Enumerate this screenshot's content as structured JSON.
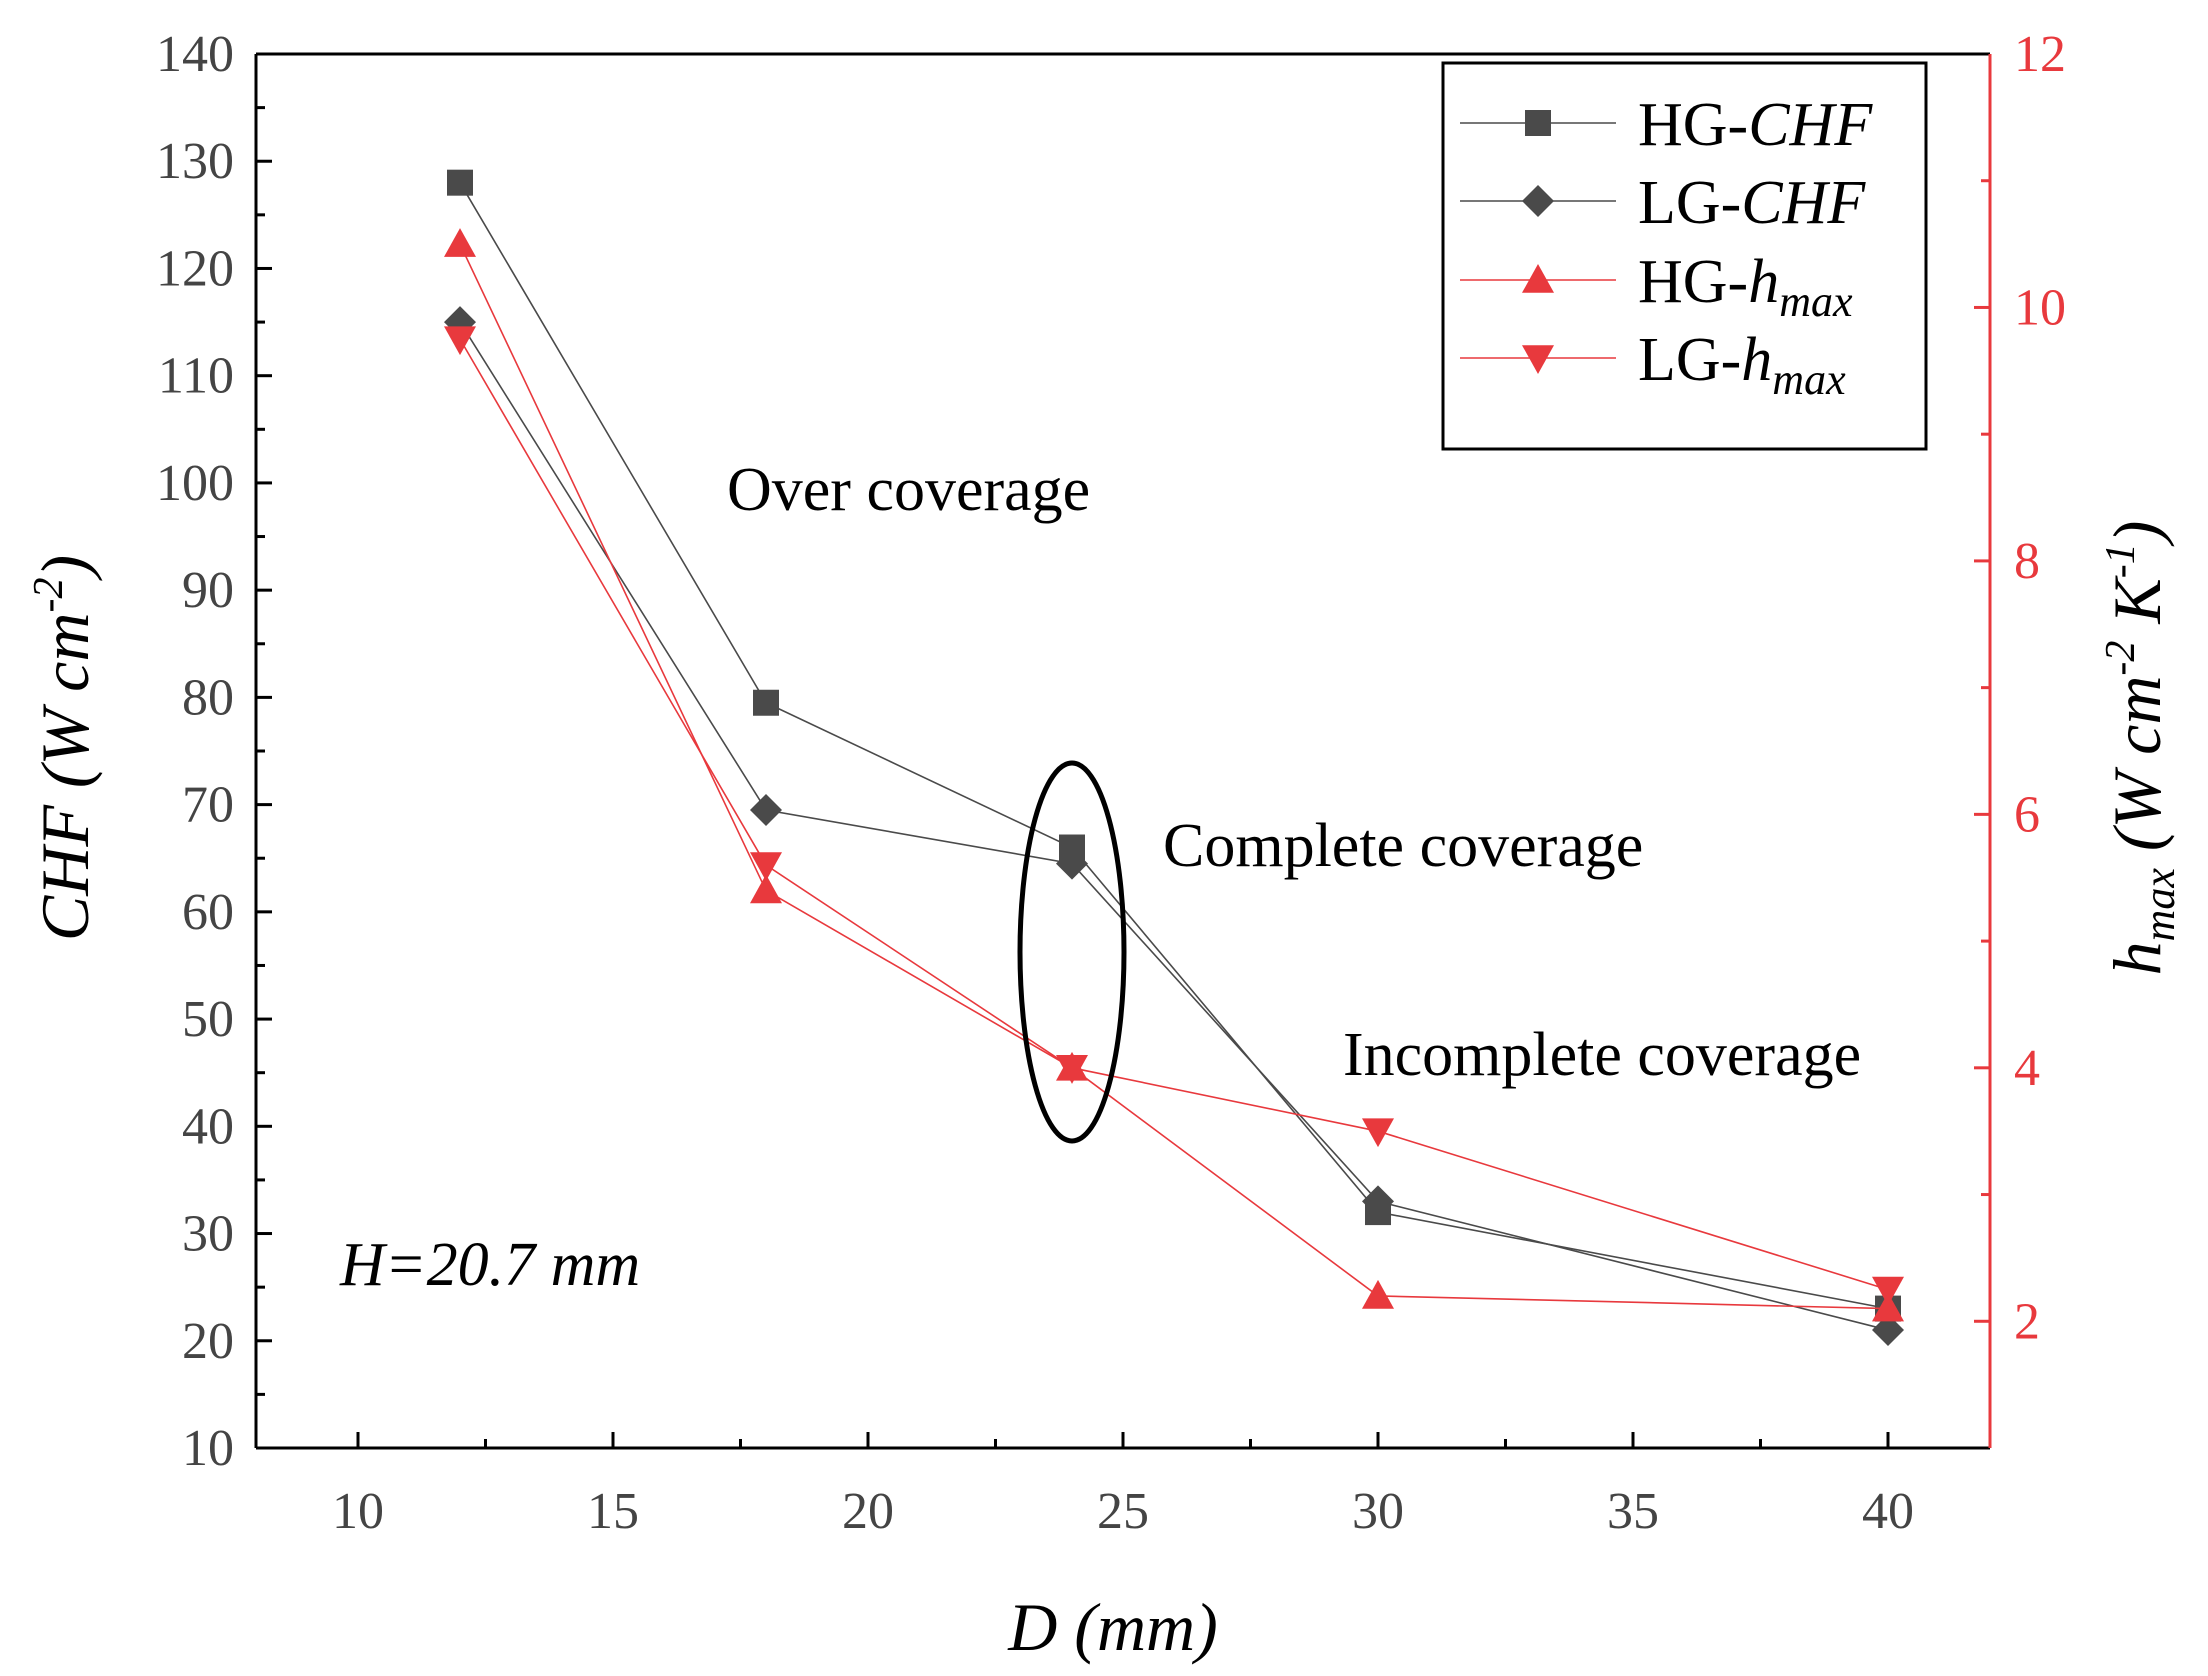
{
  "chart_data": {
    "type": "line",
    "x": [
      12,
      18,
      24,
      30,
      40
    ],
    "xlim": [
      8,
      42
    ],
    "xticks": [
      "10",
      "15",
      "20",
      "25",
      "30",
      "35",
      "40"
    ],
    "xlabel": {
      "main": "D",
      "rest": " (mm)"
    },
    "ylim": [
      10,
      140
    ],
    "yticks": [
      "10",
      "20",
      "30",
      "40",
      "50",
      "60",
      "70",
      "80",
      "90",
      "100",
      "110",
      "120",
      "130",
      "140"
    ],
    "ylabel": {
      "main": "CHF",
      "rest": " (W cm",
      "sup": "-2",
      "close": ")"
    },
    "y2lim": [
      1,
      12
    ],
    "y2ticks": [
      "2",
      "4",
      "6",
      "8",
      "10",
      "12"
    ],
    "y2label": {
      "main": "h",
      "sub": "max",
      "rest": " (W cm",
      "sup1": "-2",
      "mid": " K",
      "sup2": "-1",
      "close": ")"
    },
    "series": [
      {
        "name": {
          "prefix": "HG-",
          "italic": "CHF",
          "sub": ""
        },
        "axis": "left",
        "marker": "square",
        "color": "#4a4a4a",
        "values": [
          128,
          79.5,
          66,
          32,
          23
        ]
      },
      {
        "name": {
          "prefix": "LG-",
          "italic": "CHF",
          "sub": ""
        },
        "axis": "left",
        "marker": "diamond",
        "color": "#4a4a4a",
        "values": [
          115,
          69.5,
          64.5,
          33,
          21
        ]
      },
      {
        "name": {
          "prefix": "HG-",
          "italic": "h",
          "sub": "max"
        },
        "axis": "right",
        "marker": "triangle-up",
        "color": "#e8393d",
        "values": [
          10.5,
          5.4,
          4.0,
          2.2,
          2.1
        ]
      },
      {
        "name": {
          "prefix": "LG-",
          "italic": "h",
          "sub": "max"
        },
        "axis": "right",
        "marker": "triangle-down",
        "color": "#e8393d",
        "values": [
          9.75,
          5.6,
          4.0,
          3.5,
          2.25
        ]
      }
    ],
    "annotations": [
      "Over coverage",
      "Complete coverage",
      "Incomplete coverage"
    ],
    "note": "H=20.7 mm",
    "legend_position": "top-right",
    "grid": false,
    "axis_colors": {
      "left": "#000000",
      "right": "#e8393d"
    }
  }
}
